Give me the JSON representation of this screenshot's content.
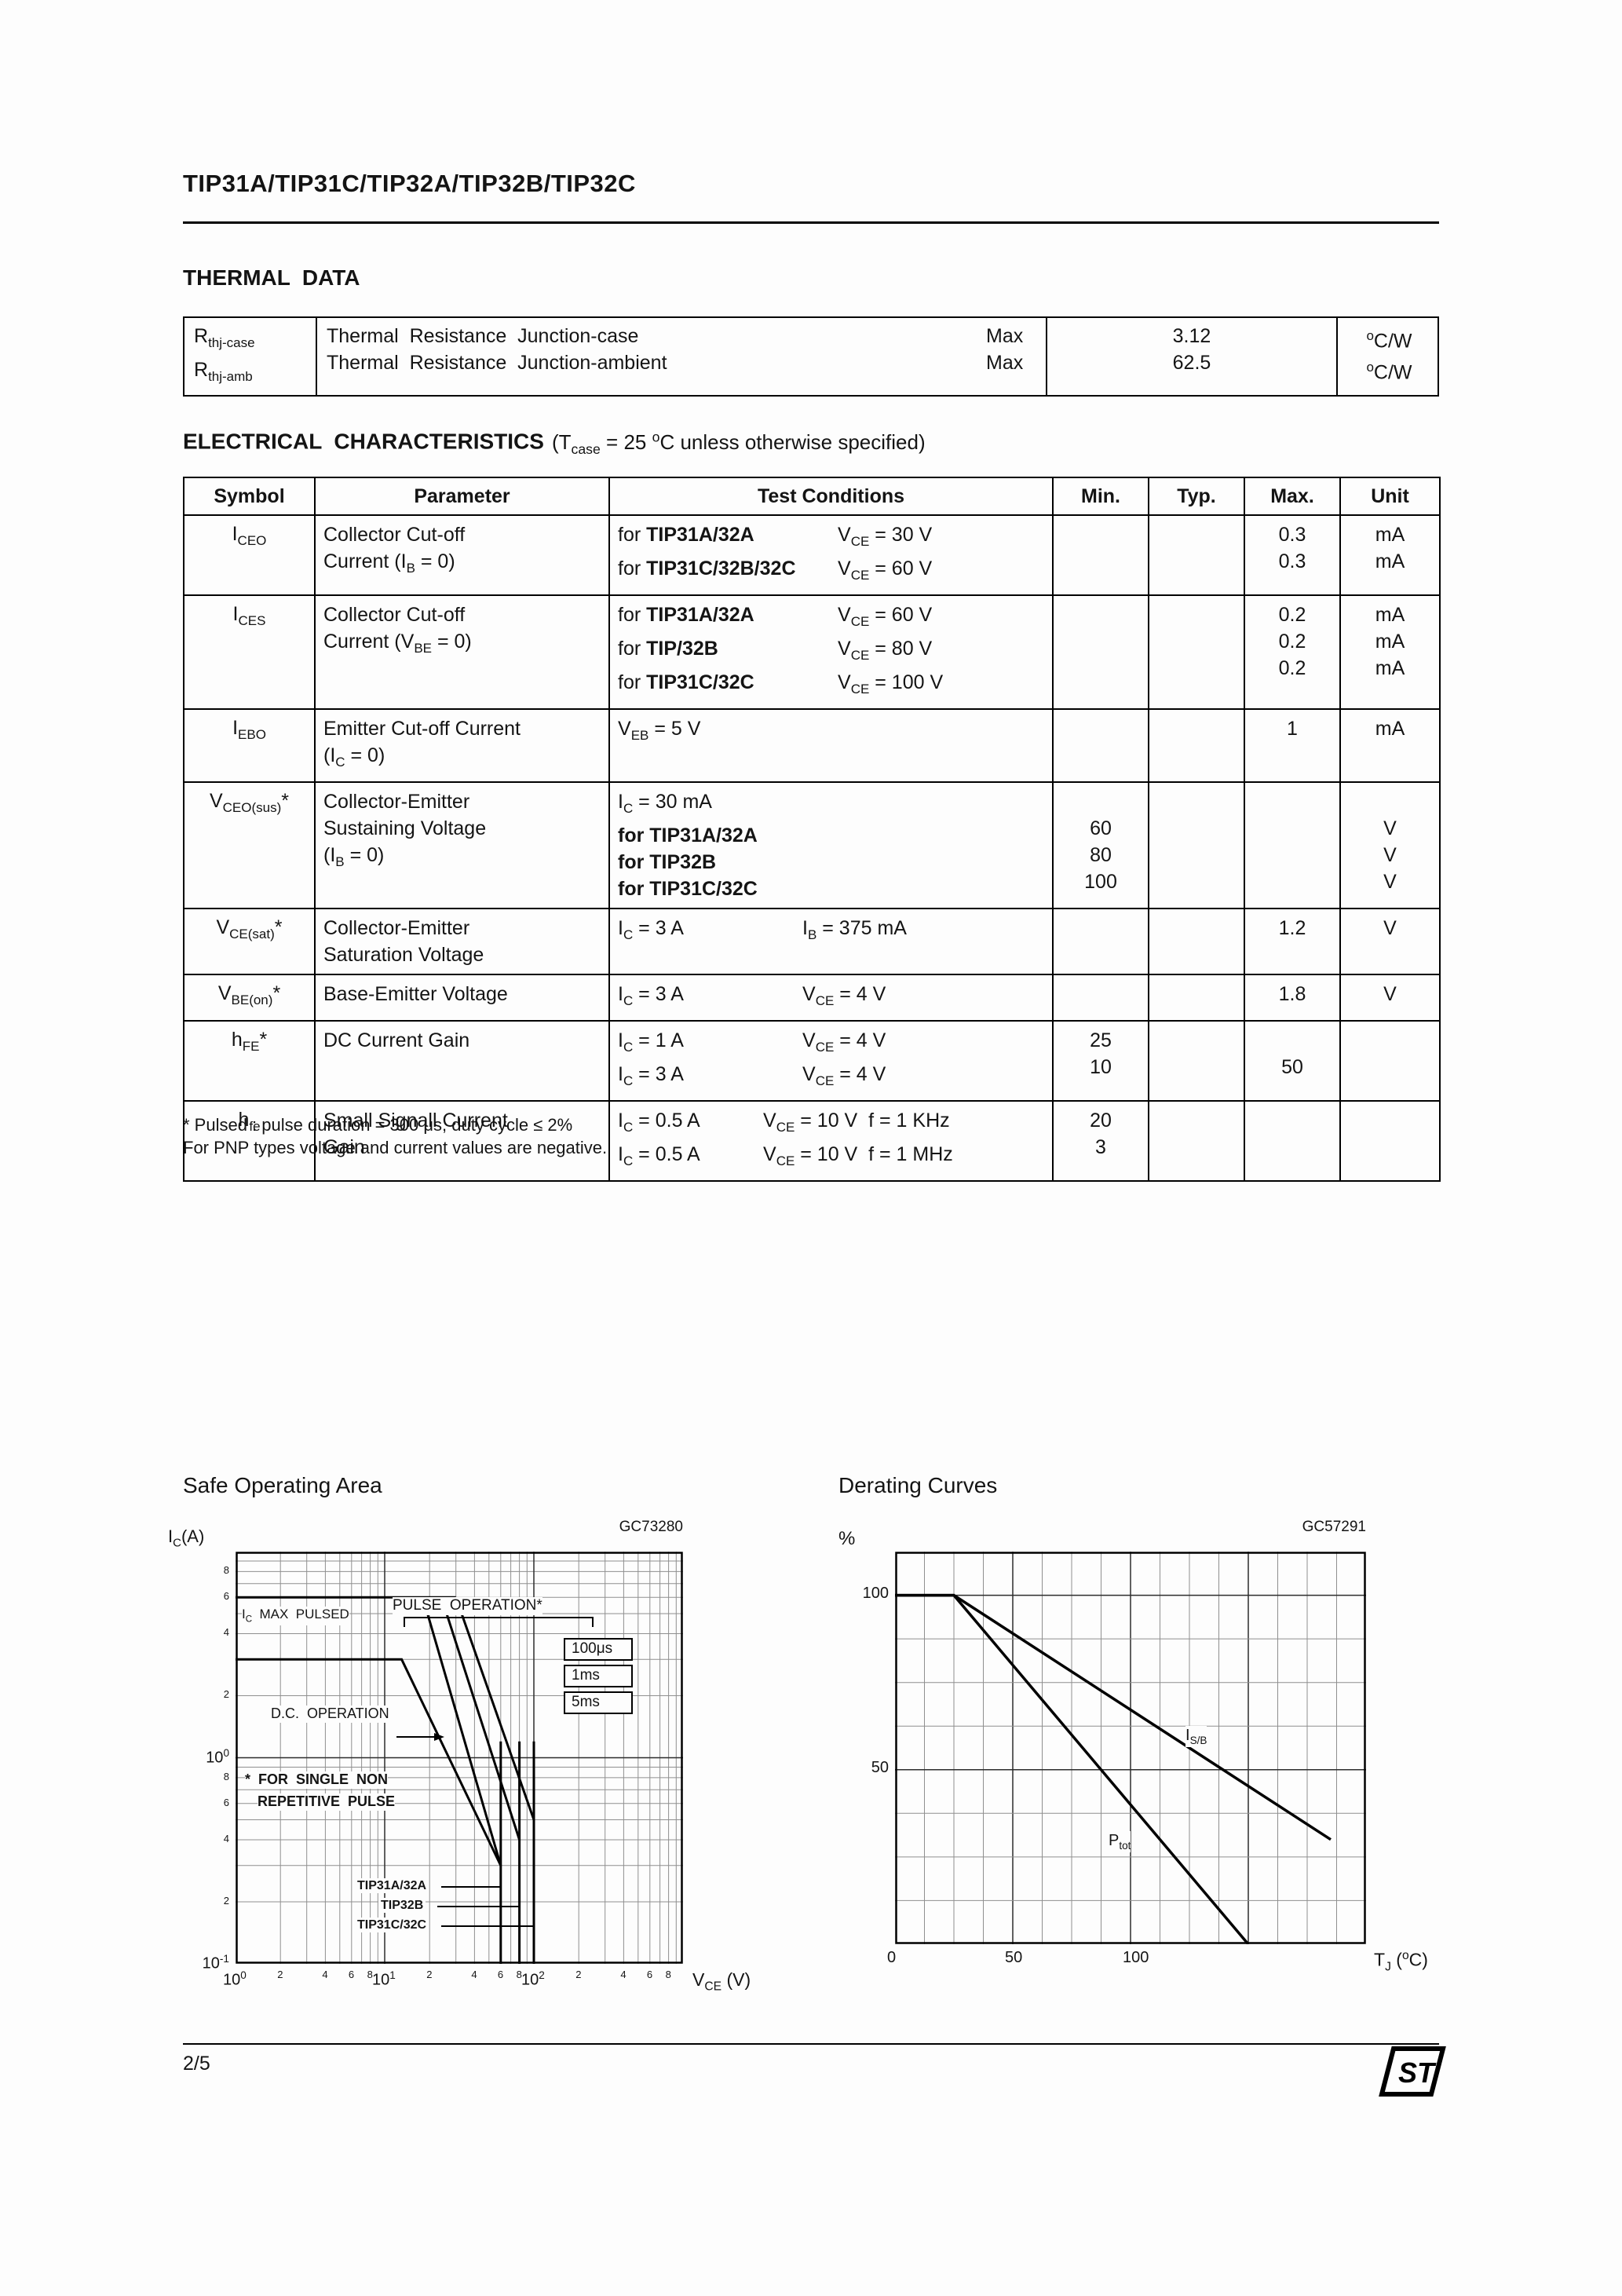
{
  "page": {
    "title": "TIP31A/TIP31C/TIP32A/TIP32B/TIP32C",
    "page_number": "2/5",
    "logo_text": "ST"
  },
  "thermal": {
    "heading": "THERMAL  DATA",
    "symbols": [
      "R~thj-case~",
      "R~thj-amb~"
    ],
    "params": [
      [
        "Thermal  Resistance  Junction-case",
        "Max"
      ],
      [
        "Thermal  Resistance  Junction-ambient",
        "Max"
      ]
    ],
    "values": [
      "3.12",
      "62.5"
    ],
    "units": [
      "^o^C/W",
      "^o^C/W"
    ]
  },
  "electrical": {
    "heading": "ELECTRICAL  CHARACTERISTICS",
    "heading_note": "(T~case~ = 25 ^o^C unless otherwise specified)",
    "headers": [
      "Symbol",
      "Parameter",
      "Test Conditions",
      "Min.",
      "Typ.",
      "Max.",
      "Unit"
    ],
    "rows": [
      {
        "symbol": "I~CEO~",
        "parameter": [
          "Collector Cut-off",
          "Current (I~B~ = 0)"
        ],
        "cond": [
          [
            "for *TIP31A/32A*",
            "V~CE~ = 30 V"
          ],
          [
            "for *TIP31C/32B/32C*",
            "V~CE~ = 60 V"
          ]
        ],
        "max": [
          "0.3",
          "0.3"
        ],
        "unit": [
          "mA",
          "mA"
        ]
      },
      {
        "symbol": "I~CES~",
        "parameter": [
          "Collector Cut-off",
          "Current (V~BE~ = 0)"
        ],
        "cond": [
          [
            "for *TIP31A/32A*",
            "V~CE~ = 60 V"
          ],
          [
            "for *TIP/32B*",
            "V~CE~ = 80 V"
          ],
          [
            "for *TIP31C/32C*",
            "V~CE~ = 100 V"
          ]
        ],
        "max": [
          "0.2",
          "0.2",
          "0.2"
        ],
        "unit": [
          "mA",
          "mA",
          "mA"
        ]
      },
      {
        "symbol": "I~EBO~",
        "parameter": [
          "Emitter Cut-off Current",
          "(I~C~ = 0)"
        ],
        "cond": [
          [
            "V~EB~ = 5 V",
            ""
          ]
        ],
        "max": [
          "1"
        ],
        "unit": [
          "mA"
        ]
      },
      {
        "symbol": "V~CEO(sus)~*",
        "parameter": [
          "Collector-Emitter",
          "Sustaining Voltage",
          "(I~B~ = 0)"
        ],
        "cond": [
          [
            "I~C~ = 30 mA",
            ""
          ],
          [
            "*for TIP31A/32A*",
            ""
          ],
          [
            "*for TIP32B*",
            ""
          ],
          [
            "*for TIP31C/32C*",
            ""
          ]
        ],
        "min": [
          "",
          "60",
          "80",
          "100"
        ],
        "unit": [
          "",
          "V",
          "V",
          "V"
        ]
      },
      {
        "symbol": "V~CE(sat)~*",
        "parameter": [
          "Collector-Emitter",
          "Saturation Voltage"
        ],
        "cond": [
          [
            "I~C~ = 3 A",
            "I~B~ = 375 mA"
          ]
        ],
        "max": [
          "1.2"
        ],
        "unit": [
          "V"
        ]
      },
      {
        "symbol": "V~BE(on)~*",
        "parameter": [
          "Base-Emitter Voltage"
        ],
        "cond": [
          [
            "I~C~ = 3 A",
            "V~CE~ = 4 V"
          ]
        ],
        "max": [
          "1.8"
        ],
        "unit": [
          "V"
        ]
      },
      {
        "symbol": "h~FE~*",
        "parameter": [
          "DC Current Gain"
        ],
        "cond": [
          [
            "I~C~ = 1 A",
            "V~CE~ = 4 V"
          ],
          [
            "I~C~ = 3 A",
            "V~CE~ = 4 V"
          ]
        ],
        "min": [
          "25",
          "10"
        ],
        "max": [
          "",
          "50"
        ]
      },
      {
        "symbol": "h~fe~",
        "parameter": [
          "Small Signall Current",
          "Gain"
        ],
        "cond": [
          [
            "I~C~ = 0.5 A",
            "V~CE~ = 10 V  f = 1 KHz"
          ],
          [
            "I~C~ = 0.5 A",
            "V~CE~ = 10 V  f = 1 MHz"
          ]
        ],
        "min": [
          "20",
          "3"
        ]
      }
    ]
  },
  "footnotes": [
    "* Pulsed : pulse duration = 300 μs, duty cycle ≤ 2%",
    "For PNP types voltage and current values are negative."
  ],
  "charts": {
    "soa": {
      "heading": "Safe Operating Area",
      "code": "GC73280",
      "type": "line",
      "y_axis_label": "I~C~(A)",
      "x_axis_label": "V~CE~ (V)",
      "x_major_ticks": [
        {
          "v": 1,
          "label": "10^0^"
        },
        {
          "v": 10,
          "label": "10^1^"
        },
        {
          "v": 100,
          "label": "10^2^"
        }
      ],
      "x_minor_ticks": [
        [
          2,
          "2"
        ],
        [
          4,
          "4"
        ],
        [
          6,
          "6"
        ],
        [
          8,
          "8"
        ],
        [
          20,
          "2"
        ],
        [
          40,
          "4"
        ],
        [
          60,
          "6"
        ],
        [
          80,
          "8"
        ],
        [
          200,
          "2"
        ],
        [
          400,
          "4"
        ],
        [
          600,
          "6"
        ],
        [
          800,
          "8"
        ]
      ],
      "y_major_ticks": [
        {
          "v": 1,
          "label": "10^0^"
        },
        {
          "v": 0.1,
          "label": "10^-1^"
        }
      ],
      "y_minor_ticks": [
        [
          8,
          "8"
        ],
        [
          6,
          "6"
        ],
        [
          4,
          "4"
        ],
        [
          2,
          "2"
        ],
        [
          0.8,
          "8"
        ],
        [
          0.6,
          "6"
        ],
        [
          0.4,
          "4"
        ],
        [
          0.2,
          "2"
        ]
      ],
      "labels": {
        "ic_max_pulsed": "I~C~  MAX  PULSED",
        "pulse_operation": "PULSE  OPERATION*",
        "t_100us": "100μs",
        "t_1ms": "1ms",
        "t_5ms": "5ms",
        "dc_operation": "D.C.  OPERATION",
        "note_line1": "*  FOR  SINGLE  NON",
        "note_line2": "REPETITIVE  PULSE",
        "dev_60": "TIP31A/32A",
        "dev_80": "TIP32B",
        "dev_100": "TIP31C/32C"
      },
      "curves": [
        {
          "name": "ic-max-pulsed-line",
          "points": [
            [
              1,
              6
            ],
            [
              30,
              6
            ]
          ]
        },
        {
          "name": "pulse-100us-line",
          "points": [
            [
              30,
              6
            ],
            [
              100,
              0.5
            ]
          ]
        },
        {
          "name": "pulse-1ms-line",
          "points": [
            [
              24,
              6
            ],
            [
              80,
              0.4
            ]
          ]
        },
        {
          "name": "pulse-5ms-line",
          "points": [
            [
              18,
              6
            ],
            [
              60,
              0.3
            ]
          ]
        },
        {
          "name": "dc-limit-line",
          "points": [
            [
              1,
              3
            ],
            [
              13,
              3
            ],
            [
              60,
              0.3
            ]
          ]
        }
      ],
      "device_limit_lines": [
        {
          "v": 60
        },
        {
          "v": 80
        },
        {
          "v": 100
        }
      ]
    },
    "derating": {
      "heading": "Derating Curves",
      "code": "GC57291",
      "type": "line",
      "y_axis_label": "%",
      "x_axis_label": "T~J~ (^o^C)",
      "x_ticks": [
        {
          "v": 0,
          "label": "0"
        },
        {
          "v": 50,
          "label": "50"
        },
        {
          "v": 100,
          "label": "100"
        }
      ],
      "y_ticks": [
        {
          "v": 100,
          "label": "100"
        },
        {
          "v": 50,
          "label": "50"
        }
      ],
      "curves": [
        {
          "name": "isb",
          "label": "I~S/B~",
          "points": [
            [
              0,
              100
            ],
            [
              25,
              100
            ],
            [
              185,
              30
            ]
          ]
        },
        {
          "name": "ptot",
          "label": "P~tot~",
          "points": [
            [
              0,
              100
            ],
            [
              25,
              100
            ],
            [
              150,
              0
            ]
          ]
        }
      ]
    }
  }
}
